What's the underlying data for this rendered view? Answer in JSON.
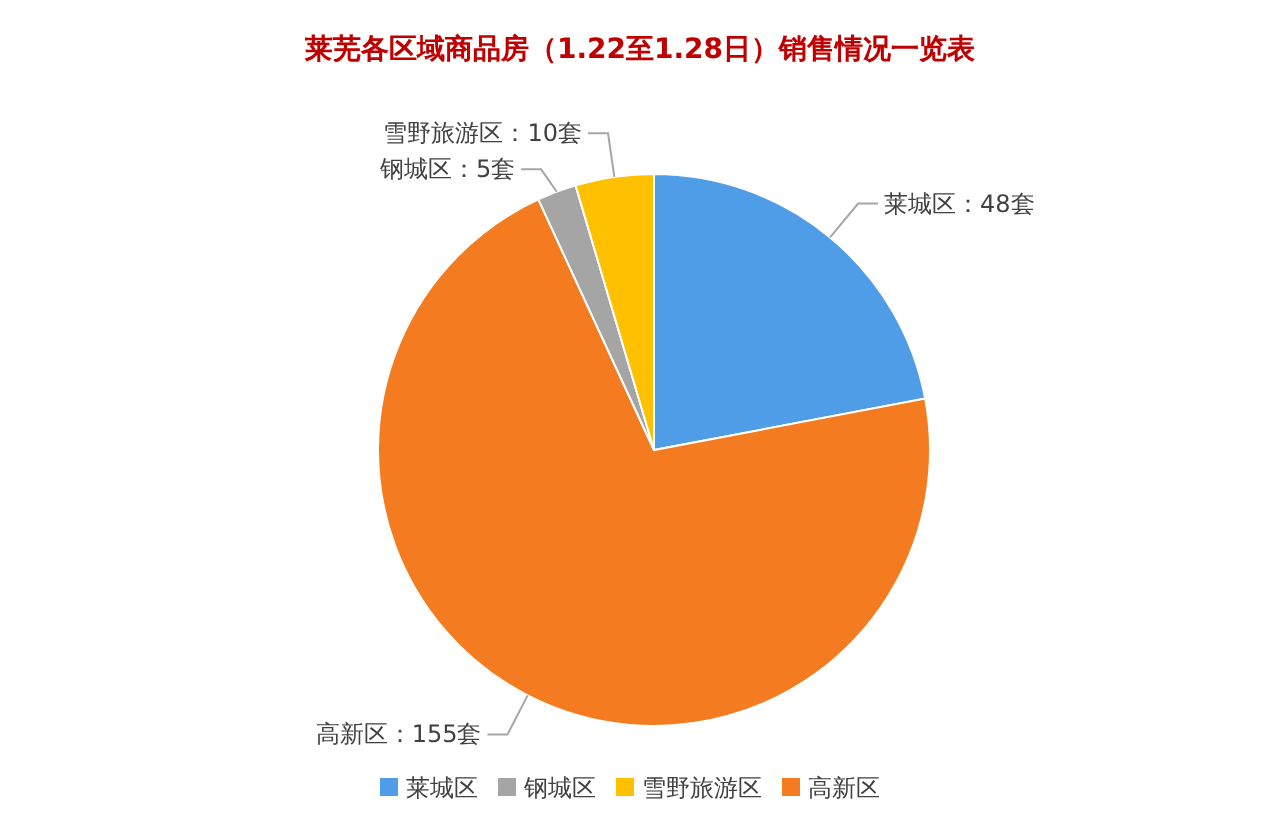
{
  "chart_data": {
    "type": "pie",
    "title": "莱芜各区域商品房（1.22至1.28日）销售情况一览表",
    "categories": [
      "莱城区",
      "高新区",
      "钢城区",
      "雪野旅游区"
    ],
    "values": [
      48,
      155,
      5,
      10
    ],
    "colors": [
      "#4f9de6",
      "#f47b20",
      "#a5a5a5",
      "#ffc000"
    ],
    "value_labels": [
      "莱城区：48套",
      "高新区：155套",
      "钢城区：5套",
      "雪野旅游区：10套"
    ],
    "legend": "bottom"
  }
}
